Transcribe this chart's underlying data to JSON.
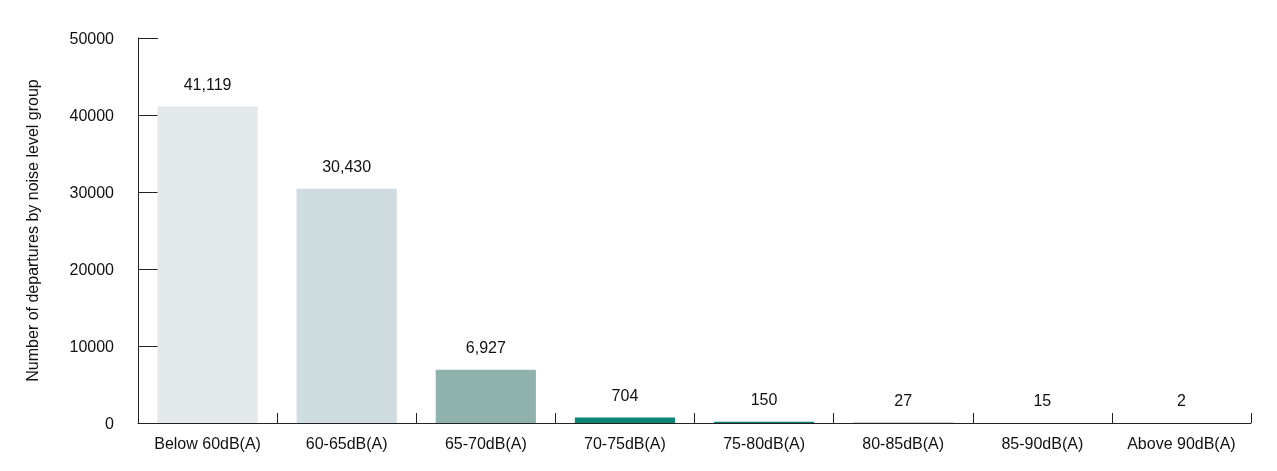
{
  "chart_data": {
    "type": "bar",
    "ylabel": "Number of departures by noise level group",
    "categories": [
      "Below 60dB(A)",
      "60-65dB(A)",
      "65-70dB(A)",
      "70-75dB(A)",
      "75-80dB(A)",
      "80-85dB(A)",
      "85-90dB(A)",
      "Above 90dB(A)"
    ],
    "values": [
      41119,
      30430,
      6927,
      704,
      150,
      27,
      15,
      2
    ],
    "colors": [
      "#e3e8ea",
      "#cfdce0",
      "#8fb2ad",
      "#0d8574",
      "#0d7a6e",
      "#2a3a3a",
      "#2a3a3a",
      "#2a3a3a"
    ],
    "value_labels": [
      "41,119",
      "30,430",
      "6,927",
      "704",
      "150",
      "27",
      "15",
      "2"
    ],
    "ylim": [
      0,
      50000
    ],
    "yticks": [
      0,
      10000,
      20000,
      30000,
      40000,
      50000
    ],
    "grid": false
  }
}
